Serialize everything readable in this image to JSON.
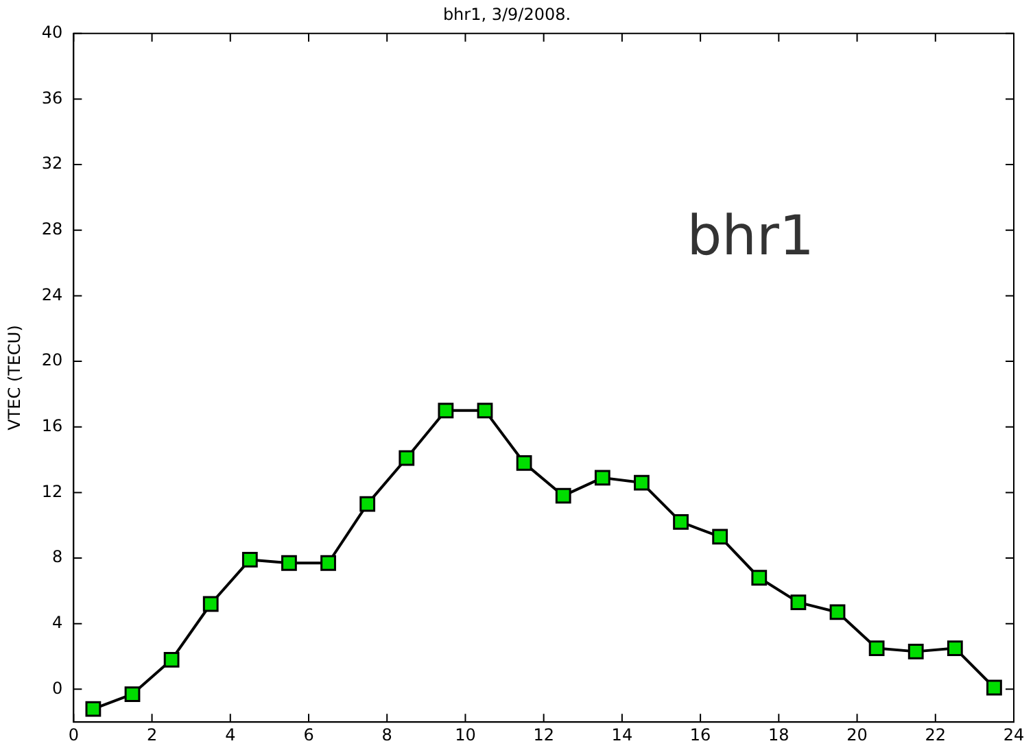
{
  "chart_data": {
    "type": "line",
    "title": "bhr1, 3/9/2008.",
    "ylabel": "VTEC (TECU)",
    "annotations": [
      "bhr1"
    ],
    "x": [
      0.5,
      1.5,
      2.5,
      3.5,
      4.5,
      5.5,
      6.5,
      7.5,
      8.5,
      9.5,
      10.5,
      11.5,
      12.5,
      13.5,
      14.5,
      15.5,
      16.5,
      17.5,
      18.5,
      19.5,
      20.5,
      21.5,
      22.5,
      23.5
    ],
    "series": [
      {
        "color": "#00dd00",
        "values": [
          -1.2,
          -0.3,
          1.8,
          5.2,
          7.9,
          7.7,
          7.7,
          11.3,
          14.1,
          17.0,
          17.0,
          13.8,
          11.8,
          12.9,
          12.6,
          10.2,
          9.3,
          6.8,
          5.3,
          4.7,
          2.5,
          2.3,
          2.5,
          0.1
        ]
      }
    ],
    "xlim": [
      0,
      24
    ],
    "xticks": [
      0,
      2,
      4,
      6,
      8,
      10,
      12,
      14,
      16,
      18,
      20,
      22,
      24
    ],
    "ylim": [
      -2,
      40
    ],
    "yticks": [
      0,
      4,
      8,
      12,
      16,
      20,
      24,
      28,
      32,
      36,
      40
    ],
    "grid": false,
    "legend": false,
    "marker": "square",
    "line_style": "solid"
  }
}
